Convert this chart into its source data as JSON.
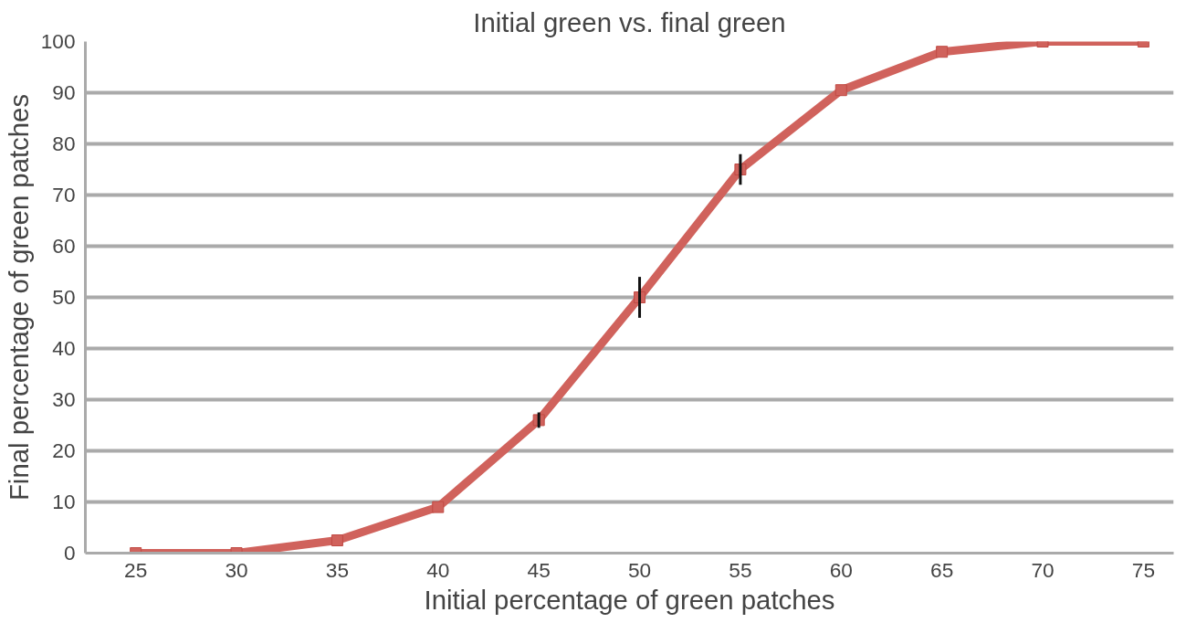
{
  "chart_data": {
    "type": "line",
    "title": "Initial green vs. final green",
    "xlabel": "Initial percentage of green patches",
    "ylabel": "Final percentage of green patches",
    "x": [
      25,
      30,
      35,
      40,
      45,
      50,
      55,
      60,
      65,
      70,
      75
    ],
    "series": [
      {
        "color": "#d0625c",
        "values": [
          0,
          0,
          2.5,
          9,
          26,
          50,
          75,
          90.5,
          98,
          100,
          100
        ],
        "errors": [
          null,
          null,
          null,
          null,
          1.5,
          4,
          3,
          null,
          null,
          null,
          null
        ]
      }
    ],
    "xlim": [
      22.5,
      76.5
    ],
    "xticks": [
      25,
      30,
      35,
      40,
      45,
      50,
      55,
      60,
      65,
      70,
      75
    ],
    "ylim": [
      0,
      100
    ],
    "yticks": [
      0,
      10,
      20,
      30,
      40,
      50,
      60,
      70,
      80,
      90,
      100
    ],
    "grid": "y",
    "marker": "square",
    "line_style": "solid"
  }
}
